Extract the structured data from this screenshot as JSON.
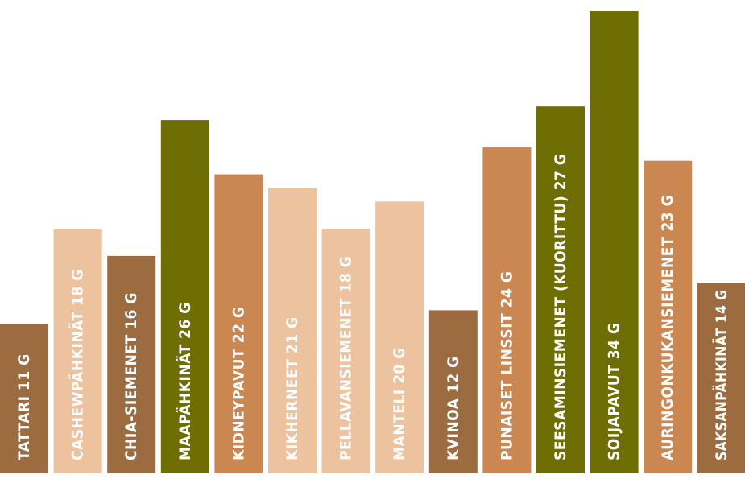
{
  "chart_data": {
    "type": "bar",
    "title": "",
    "xlabel": "",
    "ylabel": "",
    "ylim": [
      0,
      34
    ],
    "categories": [
      "TATTARI",
      "CASHEWPÄHKINÄT",
      "CHIA-SIEMENET",
      "MAAPÄHKINÄT",
      "KIDNEYPAVUT",
      "KIKHERNEET",
      "PELLAVANSIEMENET",
      "MANTELI",
      "KVINOA",
      "PUNAISET LINSSIT",
      "SEESAMINSIEMENET (KUORITTU)",
      "SOIJAPAVUT",
      "AURINGONKUKANSIEMENET",
      "SAKSANPÄHKINÄT"
    ],
    "values": [
      11,
      18,
      16,
      26,
      22,
      21,
      18,
      20,
      12,
      24,
      27,
      34,
      23,
      14
    ],
    "labels": [
      "TATTARI 11 G",
      "CASHEWPÄHKINÄT 18 G",
      "CHIA-SIEMENET 16 G",
      "MAAPÄHKINÄT 26 G",
      "KIDNEYPAVUT 22 G",
      "KIKHERNEET 21 G",
      "PELLAVANSIEMENET 18 G",
      "MANTELI 20 G",
      "KVINOA 12 G",
      "PUNAISET LINSSIT 24 G",
      "SEESAMINSIEMENET (KUORITTU) 27 G",
      "SOIJAPAVUT 34 G",
      "AURINGONKUKANSIEMENET 23 G",
      "SAKSANPÄHKINÄT 14 G"
    ],
    "colors": [
      "#9c6b3f",
      "#ecc39e",
      "#9c6b3f",
      "#6e6e05",
      "#cb8752",
      "#ecc39e",
      "#ecc39e",
      "#ecc39e",
      "#9c6b3f",
      "#cb8752",
      "#6e6e05",
      "#6e6e05",
      "#cb8752",
      "#9c6b3f"
    ],
    "grid": false,
    "legend": "none"
  }
}
